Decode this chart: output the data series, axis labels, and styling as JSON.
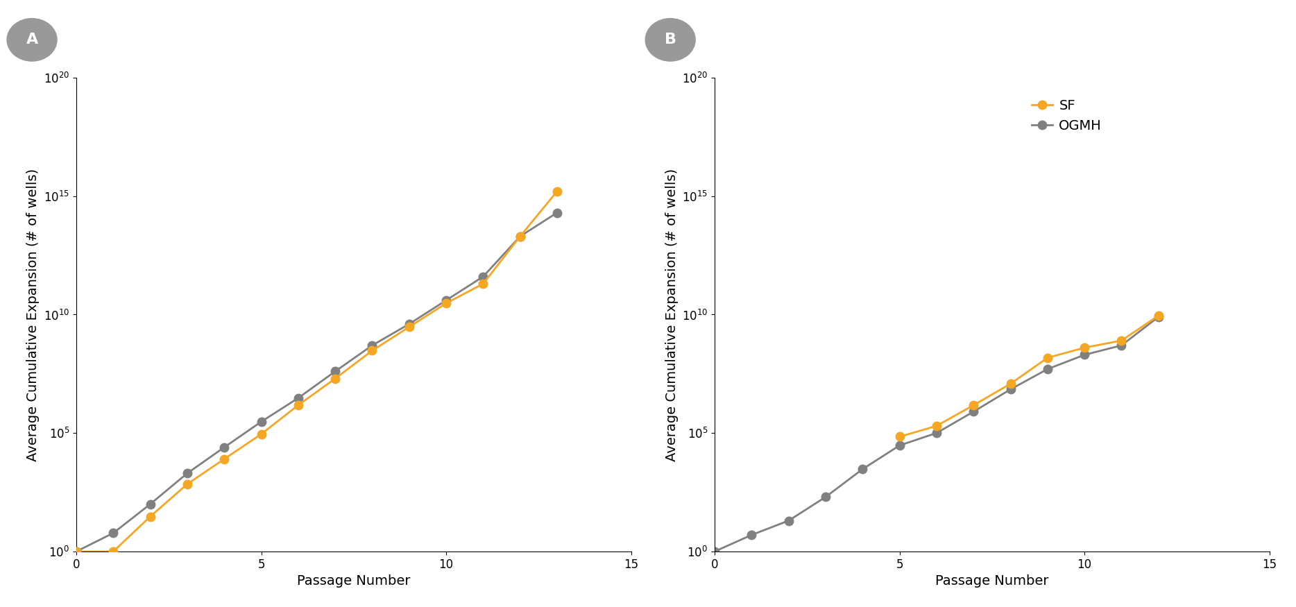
{
  "panel_A": {
    "SF": {
      "x": [
        0,
        1,
        2,
        3,
        4,
        5,
        6,
        7,
        8,
        9,
        10,
        11,
        12,
        13
      ],
      "y": [
        1,
        1,
        30,
        700,
        8000,
        90000,
        1500000,
        20000000.0,
        300000000.0,
        3000000000.0,
        30000000000.0,
        200000000000.0,
        20000000000000.0,
        1600000000000000.0
      ]
    },
    "OGMH": {
      "x": [
        0,
        1,
        2,
        3,
        4,
        5,
        6,
        7,
        8,
        9,
        10,
        11,
        12,
        13
      ],
      "y": [
        1,
        6,
        100,
        2000,
        25000,
        300000,
        3000000.0,
        40000000.0,
        500000000.0,
        4000000000.0,
        40000000000.0,
        400000000000.0,
        20000000000000.0,
        200000000000000.0
      ]
    }
  },
  "panel_B": {
    "SF": {
      "x": [
        5,
        6,
        7,
        8,
        9,
        10,
        11,
        12
      ],
      "y": [
        70000.0,
        200000.0,
        1500000.0,
        12000000.0,
        150000000.0,
        400000000.0,
        800000000.0,
        9000000000.0
      ]
    },
    "OGMH": {
      "x": [
        0,
        1,
        2,
        3,
        4,
        5,
        6,
        7,
        8,
        9,
        10,
        11,
        12
      ],
      "y": [
        1,
        5,
        20,
        200,
        3000,
        30000.0,
        100000.0,
        800000.0,
        7000000.0,
        50000000.0,
        200000000.0,
        500000000.0,
        8000000000.0
      ]
    }
  },
  "sf_color": "#F5A623",
  "ogmh_color": "#808080",
  "ylabel": "Average Cumulative Expansion (# of wells)",
  "xlabel": "Passage Number",
  "ylim_bottom": 1,
  "ylim_top": 1e+20,
  "xlim_left": 0,
  "xlim_right": 15,
  "yticks": [
    1.0,
    100000.0,
    10000000000.0,
    1000000000000000.0,
    1e+20
  ],
  "xticks": [
    0,
    5,
    10,
    15
  ],
  "label_fontsize": 14,
  "tick_fontsize": 12,
  "legend_labels": [
    "SF",
    "OGMH"
  ],
  "panel_labels": [
    "A",
    "B"
  ],
  "background_color": "#ffffff",
  "line_width": 2.0,
  "marker_size": 9
}
